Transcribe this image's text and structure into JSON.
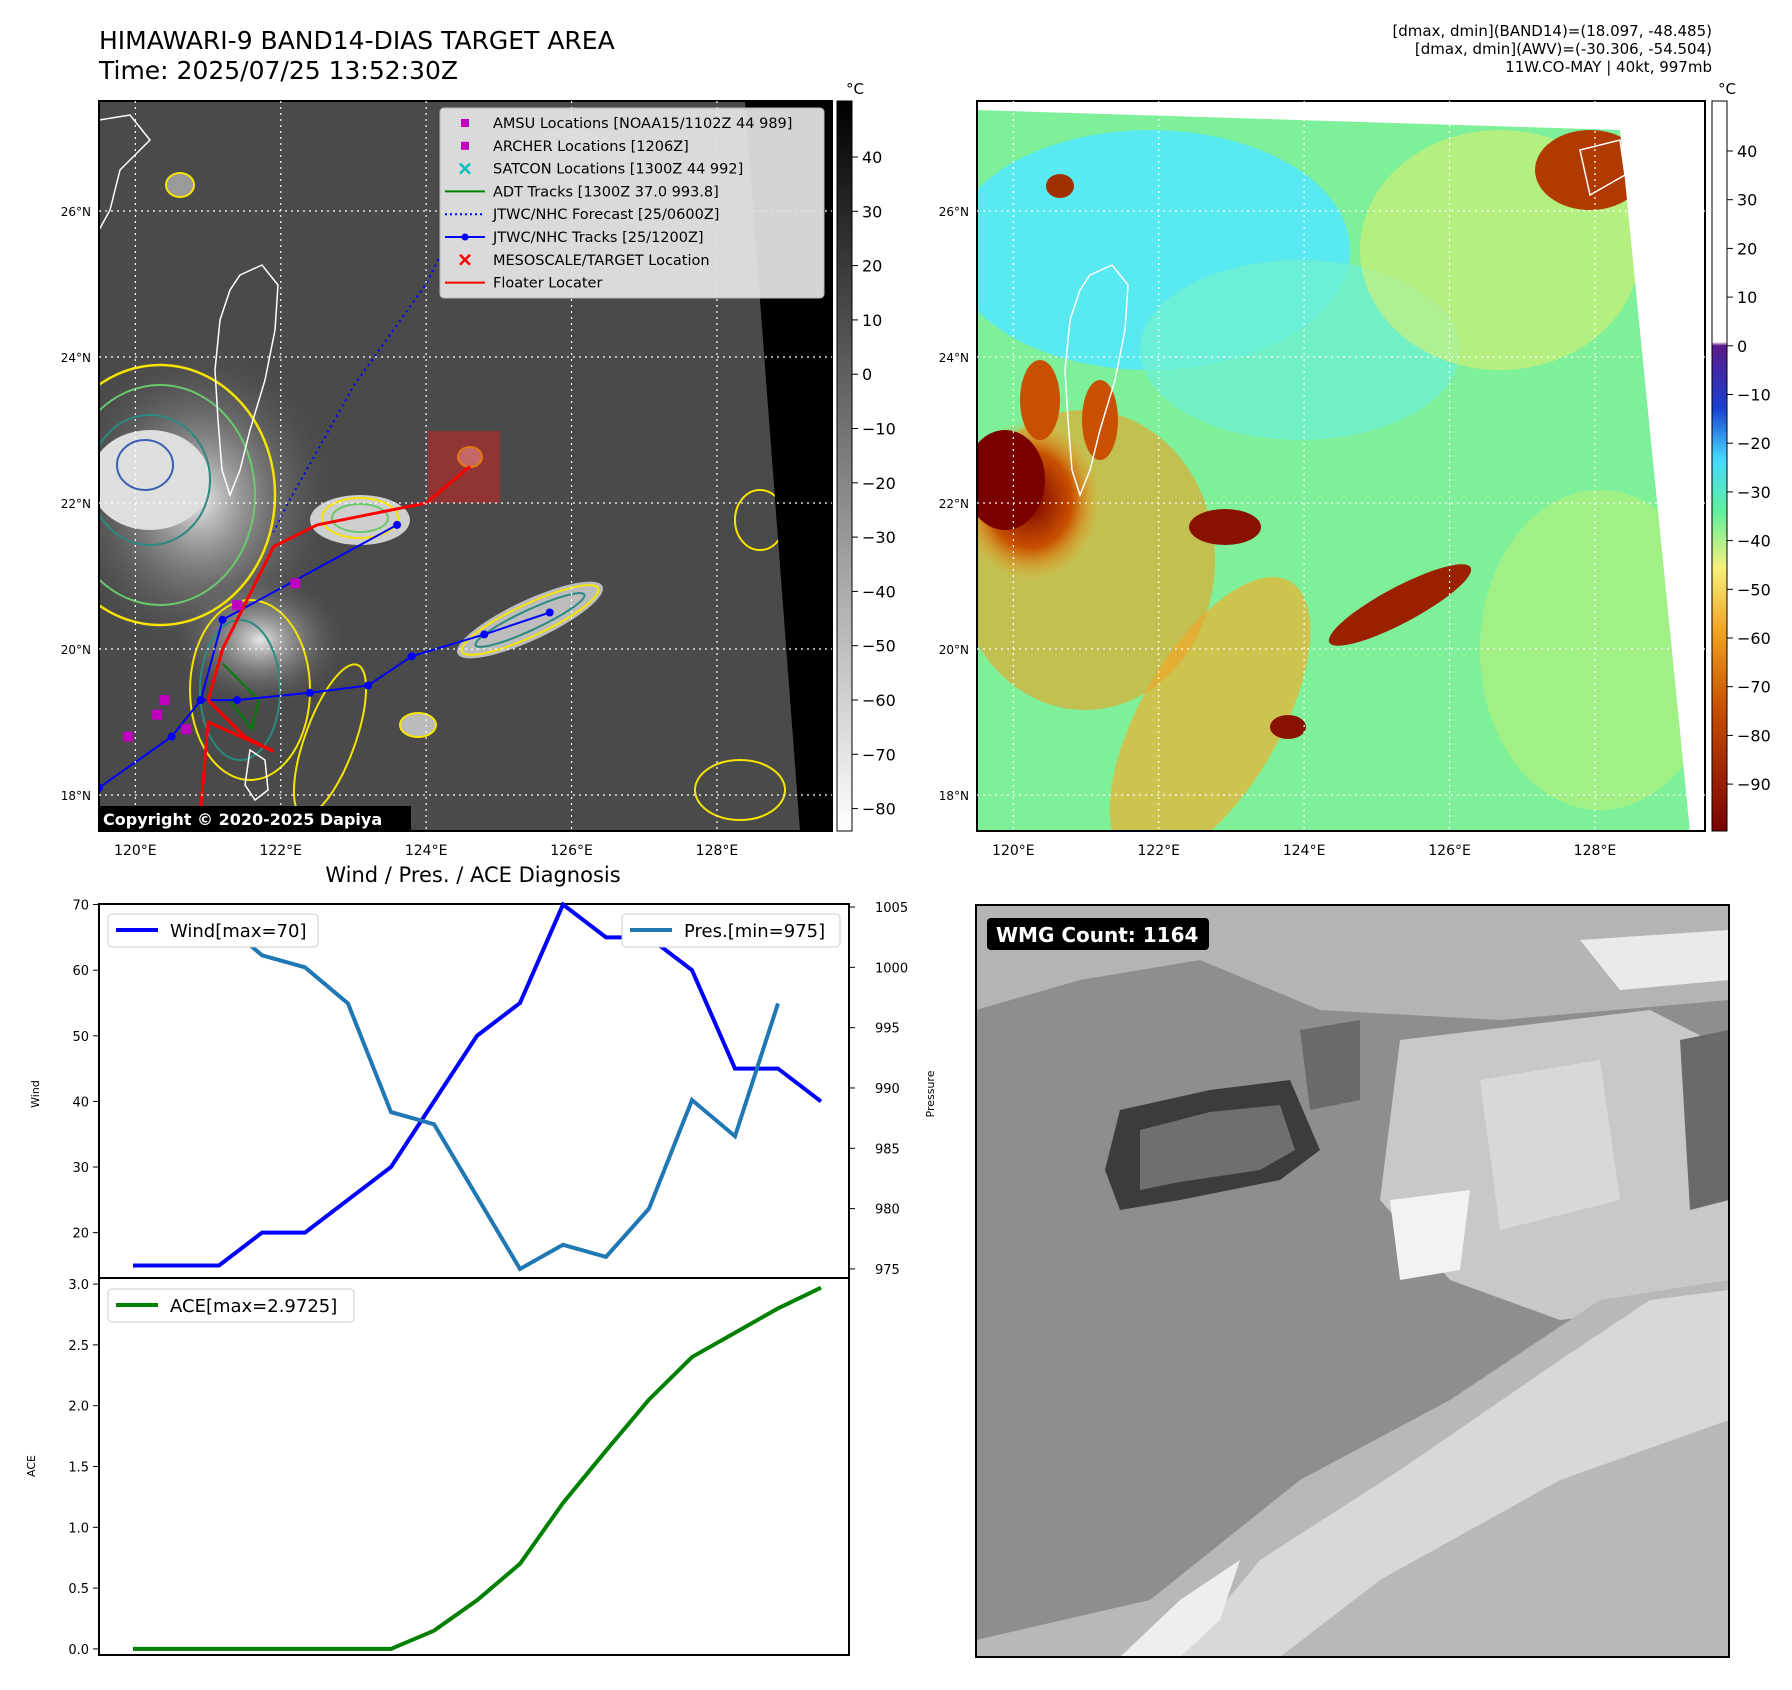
{
  "header": {
    "title": "HIMAWARI-9 BAND14-DIAS TARGET AREA",
    "time": "Time: 2025/07/25 13:52:30Z",
    "stats": [
      "[dmax, dmin](BAND14)=(18.097, -48.485)",
      "[dmax, dmin](AWV)=(-30.306, -54.504)",
      "11W.CO-MAY | 40kt, 997mb"
    ]
  },
  "maps": {
    "lon_ticks": [
      "120°E",
      "122°E",
      "124°E",
      "126°E",
      "128°E"
    ],
    "lat_ticks": [
      "26°N",
      "24°N",
      "22°N",
      "20°N",
      "18°N"
    ],
    "copyright": "Copyright © 2020-2025 Dapiya",
    "colorbar_unit": "°C",
    "ir_colorbar_ticks": [
      "40",
      "30",
      "20",
      "10",
      "0",
      "−10",
      "−20",
      "−30",
      "−40",
      "−50",
      "−60",
      "−70",
      "−80"
    ],
    "wv_colorbar_ticks": [
      "40",
      "30",
      "20",
      "10",
      "0",
      "−10",
      "−20",
      "−30",
      "−40",
      "−50",
      "−60",
      "−70",
      "−80",
      "−90"
    ],
    "legend": [
      {
        "label": "AMSU Locations [NOAA15/1102Z 44 989]",
        "marker": "square",
        "color": "#bf00bf"
      },
      {
        "label": "ARCHER Locations [1206Z]",
        "marker": "square",
        "color": "#bf00bf"
      },
      {
        "label": "SATCON Locations [1300Z 44 992]",
        "marker": "x",
        "color": "#00bfbf"
      },
      {
        "label": "ADT Tracks [1300Z 37.0 993.8]",
        "marker": "line",
        "color": "#008000"
      },
      {
        "label": "JTWC/NHC Forecast [25/0600Z]",
        "marker": "dotted",
        "color": "#0000ff"
      },
      {
        "label": "JTWC/NHC Tracks [25/1200Z]",
        "marker": "line-dot",
        "color": "#0000ff"
      },
      {
        "label": "MESOSCALE/TARGET Location",
        "marker": "x",
        "color": "#ff0000"
      },
      {
        "label": "Floater Locater",
        "marker": "line",
        "color": "#ff0000"
      }
    ],
    "jtwc_track": [
      [
        123.6,
        21.7
      ],
      [
        121.2,
        20.4
      ],
      [
        120.9,
        19.3
      ],
      [
        120.5,
        18.8
      ],
      [
        119.5,
        18.1
      ]
    ],
    "jtwc_track2": [
      [
        125.7,
        20.5
      ],
      [
        124.8,
        20.2
      ],
      [
        123.8,
        19.9
      ],
      [
        123.2,
        19.5
      ],
      [
        122.4,
        19.4
      ],
      [
        121.4,
        19.3
      ],
      [
        120.9,
        19.3
      ]
    ],
    "forecast_track": [
      [
        124.5,
        26.0
      ],
      [
        124.0,
        25.0
      ],
      [
        123.0,
        23.6
      ],
      [
        122.1,
        22.0
      ],
      [
        121.9,
        21.6
      ]
    ],
    "floater_track": [
      [
        124.6,
        22.5
      ],
      [
        124.0,
        22.0
      ],
      [
        122.5,
        21.7
      ],
      [
        121.9,
        21.4
      ],
      [
        121.2,
        20.0
      ],
      [
        121.0,
        19.3
      ],
      [
        121.5,
        18.8
      ],
      [
        121.9,
        18.6
      ],
      [
        121.0,
        19.0
      ],
      [
        120.9,
        17.8
      ]
    ],
    "adt_track": [
      [
        121.2,
        19.8
      ],
      [
        121.7,
        19.3
      ],
      [
        121.6,
        18.9
      ],
      [
        121.3,
        19.3
      ]
    ],
    "amsu_points": [
      [
        120.4,
        19.3
      ],
      [
        119.9,
        18.8
      ],
      [
        120.3,
        19.1
      ],
      [
        120.7,
        18.9
      ],
      [
        121.4,
        20.6
      ],
      [
        122.2,
        20.9
      ]
    ],
    "target_box": [
      [
        123.9,
        22.0
      ],
      [
        124.9,
        23.0
      ]
    ]
  },
  "wind_panel": {
    "title": "Wind / Pres. / ACE Diagnosis",
    "wind_legend": "Wind[max=70]",
    "pres_legend": "Pres.[min=975]",
    "ylabel_left": "Wind",
    "ylabel_right": "Pressure",
    "left_ticks": [
      "20",
      "30",
      "40",
      "50",
      "60",
      "70"
    ],
    "right_ticks": [
      "975",
      "980",
      "985",
      "990",
      "995",
      "1000",
      "1005"
    ]
  },
  "ace_panel": {
    "legend": "ACE[max=2.9725]",
    "ylabel": "ACE",
    "ticks": [
      "0.0",
      "0.5",
      "1.0",
      "1.5",
      "2.0",
      "2.5",
      "3.0"
    ]
  },
  "wmg_panel": {
    "label": "WMG Count: 1164"
  },
  "chart_data": [
    {
      "type": "line",
      "title": "Wind / Pres. / ACE Diagnosis",
      "x": [
        0,
        1,
        2,
        3,
        4,
        5,
        6,
        7,
        8,
        9,
        10,
        11,
        12,
        13,
        14,
        15,
        16
      ],
      "series": [
        {
          "name": "Wind[max=70]",
          "axis": "left",
          "color": "#0000ff",
          "values": [
            15,
            15,
            15,
            20,
            20,
            25,
            30,
            40,
            50,
            55,
            70,
            65,
            65,
            60,
            45,
            45,
            40
          ]
        },
        {
          "name": "Pres.[min=975]",
          "axis": "right",
          "color": "#1f77b4",
          "values": [
            1004,
            1004,
            1004,
            1001,
            1000,
            997,
            988,
            987,
            981,
            975,
            977,
            976,
            980,
            989,
            986,
            997,
            null
          ]
        }
      ],
      "ylabel": "Wind",
      "ylim": [
        14,
        71
      ],
      "y2label": "Pressure",
      "y2lim": [
        974,
        1005
      ]
    },
    {
      "type": "line",
      "x": [
        0,
        1,
        2,
        3,
        4,
        5,
        6,
        7,
        8,
        9,
        10,
        11,
        12,
        13,
        14,
        15,
        16
      ],
      "series": [
        {
          "name": "ACE[max=2.9725]",
          "color": "#008000",
          "values": [
            0,
            0,
            0,
            0,
            0,
            0,
            0,
            0.15,
            0.4,
            0.7,
            1.2,
            1.63,
            2.05,
            2.4,
            2.6,
            2.8,
            2.97
          ]
        }
      ],
      "ylabel": "ACE",
      "ylim": [
        -0.05,
        3.05
      ]
    }
  ]
}
